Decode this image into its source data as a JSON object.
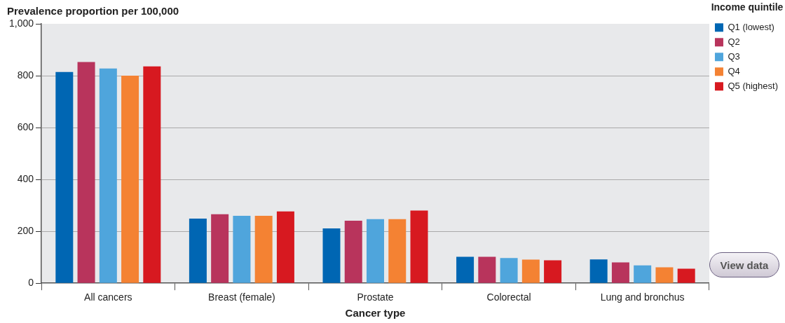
{
  "chart_data": {
    "type": "bar",
    "ylabel": "Prevalence proportion per 100,000",
    "xlabel": "Cancer type",
    "legend_title": "Income quintile",
    "categories": [
      "All cancers",
      "Breast (female)",
      "Prostate",
      "Colorectal",
      "Lung and bronchus"
    ],
    "series": [
      {
        "name": "Q1 (lowest)",
        "color": "#0066b3",
        "values": [
          814,
          249,
          211,
          102,
          92
        ]
      },
      {
        "name": "Q2",
        "color": "#b8345c",
        "values": [
          853,
          266,
          241,
          102,
          80
        ]
      },
      {
        "name": "Q3",
        "color": "#4fa5dc",
        "values": [
          828,
          260,
          247,
          97,
          69
        ]
      },
      {
        "name": "Q4",
        "color": "#f48233",
        "values": [
          800,
          260,
          247,
          91,
          61
        ]
      },
      {
        "name": "Q5 (highest)",
        "color": "#d71920",
        "values": [
          836,
          277,
          280,
          88,
          56
        ]
      }
    ],
    "ylim": [
      0,
      1000
    ],
    "yticks": [
      0,
      200,
      400,
      600,
      800,
      {
        "value": 1000,
        "label": "1,000"
      }
    ],
    "grid": "y",
    "legend": "top right",
    "annotations": [
      "View data"
    ]
  }
}
